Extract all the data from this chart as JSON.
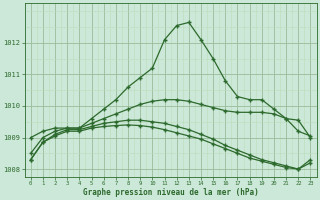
{
  "hours": [
    0,
    1,
    2,
    3,
    4,
    5,
    6,
    7,
    8,
    9,
    10,
    11,
    12,
    13,
    14,
    15,
    16,
    17,
    18,
    19,
    20,
    21,
    22,
    23
  ],
  "line1": [
    1008.5,
    1009.0,
    1009.2,
    1009.3,
    1009.3,
    1009.6,
    1009.9,
    1010.2,
    1010.6,
    1010.9,
    1011.2,
    1012.1,
    1012.55,
    1012.65,
    1012.1,
    1011.5,
    1010.8,
    1010.3,
    1010.2,
    1010.2,
    1009.9,
    1009.6,
    1009.2,
    1009.05
  ],
  "line2": [
    1009.0,
    1009.2,
    1009.3,
    1009.3,
    1009.3,
    1009.45,
    1009.6,
    1009.75,
    1009.9,
    1010.05,
    1010.15,
    1010.2,
    1010.2,
    1010.15,
    1010.05,
    1009.95,
    1009.85,
    1009.8,
    1009.8,
    1009.8,
    1009.75,
    1009.6,
    1009.55,
    1009.0
  ],
  "line3": [
    1008.3,
    1008.85,
    1009.1,
    1009.25,
    1009.25,
    1009.35,
    1009.45,
    1009.5,
    1009.55,
    1009.55,
    1009.5,
    1009.45,
    1009.35,
    1009.25,
    1009.1,
    1008.95,
    1008.75,
    1008.6,
    1008.45,
    1008.3,
    1008.2,
    1008.1,
    1008.0,
    1008.3
  ],
  "line4": [
    1008.3,
    1008.85,
    1009.05,
    1009.2,
    1009.2,
    1009.3,
    1009.35,
    1009.38,
    1009.4,
    1009.38,
    1009.33,
    1009.25,
    1009.15,
    1009.05,
    1008.95,
    1008.8,
    1008.65,
    1008.5,
    1008.35,
    1008.25,
    1008.15,
    1008.05,
    1008.0,
    1008.2
  ],
  "bg_color": "#cce8d8",
  "line_color": "#2d6a2d",
  "grid_color_major": "#99bb99",
  "grid_color_minor": "#bbddbb",
  "xlabel": "Graphe pression niveau de la mer (hPa)",
  "ylim_min": 1007.75,
  "ylim_max": 1013.25,
  "yticks": [
    1008,
    1009,
    1010,
    1011,
    1012
  ],
  "xlim_min": -0.5,
  "xlim_max": 23.5
}
